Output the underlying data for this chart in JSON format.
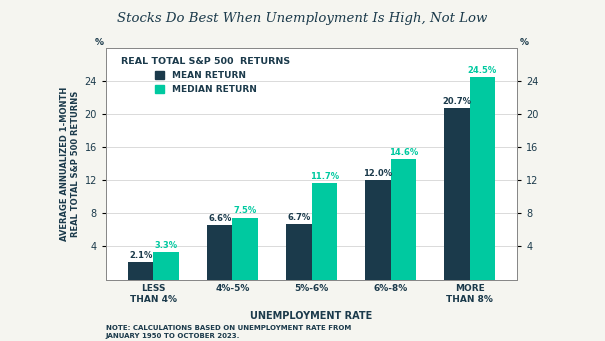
{
  "title": "Stocks Do Best When Unemployment Is High, Not Low",
  "categories": [
    "LESS\nTHAN 4%",
    "4%-5%",
    "5%-6%",
    "6%-8%",
    "MORE\nTHAN 8%"
  ],
  "mean_values": [
    2.1,
    6.6,
    6.7,
    12.0,
    20.7
  ],
  "median_values": [
    3.3,
    7.5,
    11.7,
    14.6,
    24.5
  ],
  "mean_labels": [
    "2.1%",
    "6.6%",
    "6.7%",
    "12.0%",
    "20.7%"
  ],
  "median_labels": [
    "3.3%",
    "7.5%",
    "11.7%",
    "14.6%",
    "24.5%"
  ],
  "mean_color": "#1b3a4b",
  "median_color": "#00c9a0",
  "ylabel": "AVERAGE ANNUALIZED 1-MONTH\nREAL TOTAL S&P 500 RETURNS",
  "xlabel": "UNEMPLOYMENT RATE",
  "ylim": [
    0,
    28
  ],
  "yticks": [
    4,
    8,
    12,
    16,
    20,
    24
  ],
  "legend_title": "REAL TOTAL S&P 500  RETURNS",
  "legend_mean": "MEAN RETURN",
  "legend_median": "MEDIAN RETURN",
  "note": "NOTE: CALCULATIONS BASED ON UNEMPLOYMENT RATE FROM\nJANUARY 1950 TO OCTOBER 2023.",
  "bar_width": 0.32,
  "background_color": "#f5f5f0",
  "plot_bg_color": "#ffffff",
  "title_color": "#1b3a4b",
  "axis_label_color": "#1b3a4b",
  "tick_label_color": "#1b3a4b",
  "note_color": "#1b3a4b",
  "legend_color": "#1b3a4b"
}
